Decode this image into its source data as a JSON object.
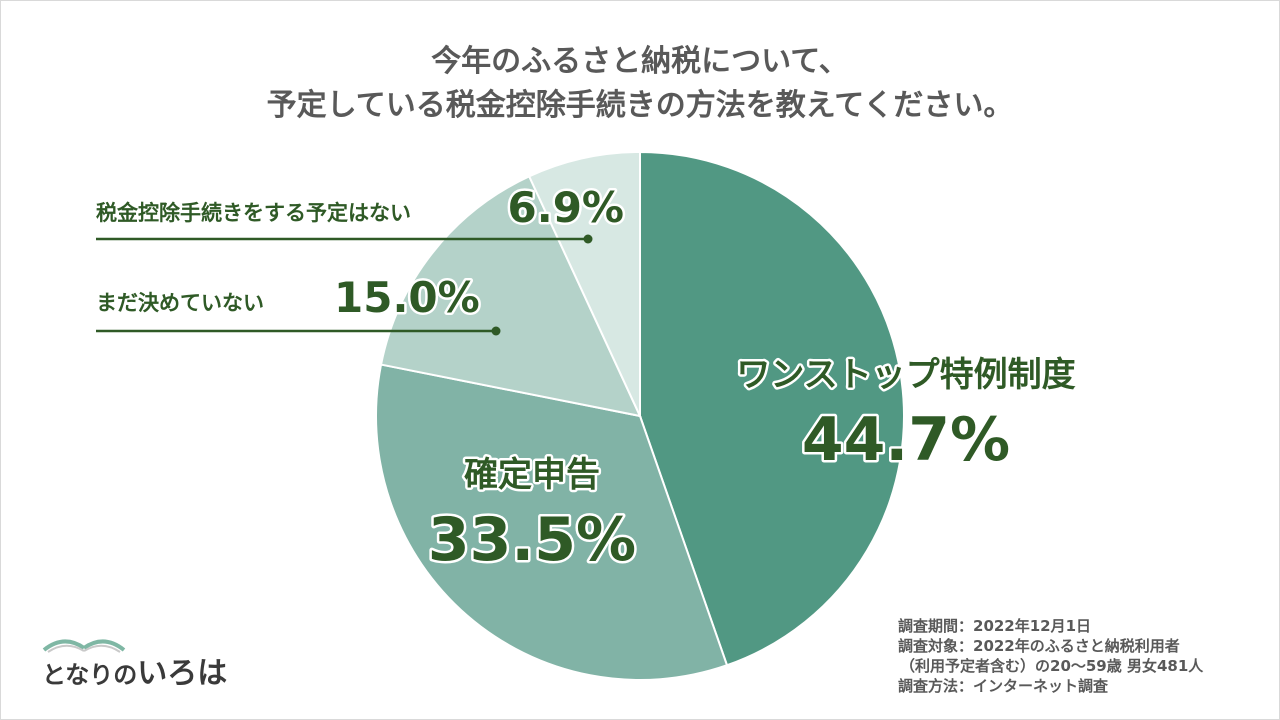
{
  "title": {
    "line1": "今年のふるさと納税について、",
    "line2": "予定している税金控除手続きの方法を教えてください。"
  },
  "chart_data": {
    "type": "pie",
    "start_angle_deg": 0,
    "direction": "clockwise",
    "slices": [
      {
        "label": "ワンストップ特例制度",
        "value": 44.7,
        "value_label": "44.7%",
        "color": "#519883",
        "label_color": "#2f5a26"
      },
      {
        "label": "確定申告",
        "value": 33.5,
        "value_label": "33.5%",
        "color": "#81b3a6",
        "label_color": "#2f5a26"
      },
      {
        "label": "まだ決めていない",
        "value": 15.0,
        "value_label": "15.0%",
        "color": "#b4d2c9",
        "label_color": "#2f5a26"
      },
      {
        "label": "税金控除手続きをする予定はない",
        "value": 6.9,
        "value_label": "6.9%",
        "color": "#d7e8e3",
        "label_color": "#2f5a26"
      }
    ]
  },
  "footnote": {
    "period": "調査期間：2022年12月1日",
    "target": "調査対象：2022年のふるさと納税利用者",
    "target2": "（利用予定者含む）の20～59歳 男女481人",
    "method": "調査方法：インターネット調査"
  },
  "logo": {
    "text_small": "となりの",
    "text_big": "いろは"
  },
  "colors": {
    "accent_green": "#2f5a26",
    "text_gray": "#595959"
  }
}
